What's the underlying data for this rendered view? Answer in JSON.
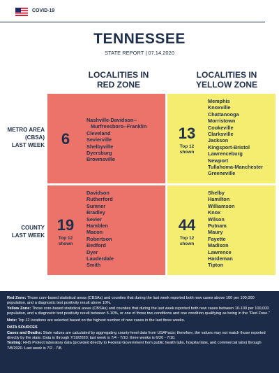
{
  "header": {
    "brand": "COVID-19",
    "title": "TENNESSEE",
    "report_line": "STATE REPORT | 07.14.2020"
  },
  "columns": {
    "red": [
      "LOCALITIES IN",
      "RED ZONE"
    ],
    "yellow": [
      "LOCALITIES IN",
      "YELLOW ZONE"
    ]
  },
  "rows": {
    "metro": [
      "METRO AREA",
      "(CBSA)",
      "LAST WEEK"
    ],
    "county": [
      "COUNTY",
      "LAST WEEK"
    ]
  },
  "cells": {
    "metro_red": {
      "count": "6",
      "note": "",
      "items": [
        "Nashville-Davidson--",
        "Murfreesboro--Franklin",
        "Cleveland",
        "Sevierville",
        "Shelbyville",
        "Dyersburg",
        "Brownsville"
      ]
    },
    "metro_yellow": {
      "count": "13",
      "note": "Top 12 shown",
      "items": [
        "Memphis",
        "Knoxville",
        "Chattanooga",
        "Morristown",
        "Cookeville",
        "Clarksville",
        "Jackson",
        "Kingsport-Bristol",
        "Lawrenceburg",
        "Newport",
        "Tullahoma-Manchester",
        "Greeneville"
      ]
    },
    "county_red": {
      "count": "19",
      "note": "Top 12 shown",
      "items": [
        "Davidson",
        "Rutherford",
        "Sumner",
        "Bradley",
        "Sevier",
        "Hamblen",
        "Macon",
        "Robertson",
        "Bedford",
        "Dyer",
        "Lauderdale",
        "Smith"
      ]
    },
    "county_yellow": {
      "count": "44",
      "note": "Top 12 shown",
      "items": [
        "Shelby",
        "Hamilton",
        "Williamson",
        "Knox",
        "Wilson",
        "Putnam",
        "Maury",
        "Fayette",
        "Madison",
        "Lawrence",
        "Hardeman",
        "Tipton"
      ]
    }
  },
  "footer": {
    "red_zone_label": "Red Zone:",
    "red_zone_text": " Those core-based statistical areas (CBSAs) and counties that during the last week reported both new cases above 100 per 100,000 population, and a diagnostic test positivity result above 10%.",
    "yellow_zone_label": "Yellow Zone:",
    "yellow_zone_text": " Those core-based statistical areas (CBSAs) and counties that during the last week reported both new cases between 10-100 per 100,000 population, and a diagnostic test positivity result between 5-10%, or one of those two conditions and one condition qualifying as being in the \"Red Zone.\"",
    "note_label": "Note:",
    "note_text": " Top 12 locations are selected based on the highest number of new cases in the last three weeks.",
    "sources_heading": "DATA SOURCES",
    "cases_label": "Cases and Deaths:",
    "cases_text": " State values are calculated by aggregating county-level data from USAFacts; therefore, the values may not match those reported directly by the state. Data is through 7/10/2020; last week is 7/4 - 7/10, three weeks is 6/20 - 7/10.",
    "testing_label": "Testing:",
    "testing_text": " HHS Protect laboratory data (provided directly to Federal Government from public health labs, hospital labs, and commercial labs) through 7/8/2020. Last week is 7/2 - 7/8."
  },
  "colors": {
    "red_zone": "#ec7369",
    "yellow_zone": "#f5ed70",
    "navy": "#1c2c48"
  }
}
